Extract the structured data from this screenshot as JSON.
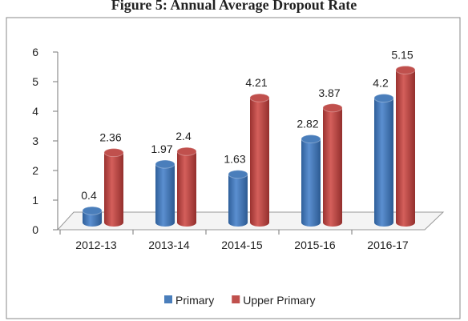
{
  "chart_data": {
    "type": "bar",
    "title": "Figure 5: Annual Average Dropout Rate",
    "categories": [
      "2012-13",
      "2013-14",
      "2014-15",
      "2015-16",
      "2016-17"
    ],
    "series": [
      {
        "name": "Primary",
        "color": "#4a7ebb",
        "values": [
          0.4,
          1.97,
          1.63,
          2.82,
          4.2
        ]
      },
      {
        "name": "Upper Primary",
        "color": "#c0504d",
        "values": [
          2.36,
          2.4,
          4.21,
          3.87,
          5.15
        ]
      }
    ],
    "ylim": [
      0,
      6
    ],
    "yticks": [
      0,
      1,
      2,
      3,
      4,
      5,
      6
    ],
    "grid": false,
    "legend": "bottom"
  }
}
